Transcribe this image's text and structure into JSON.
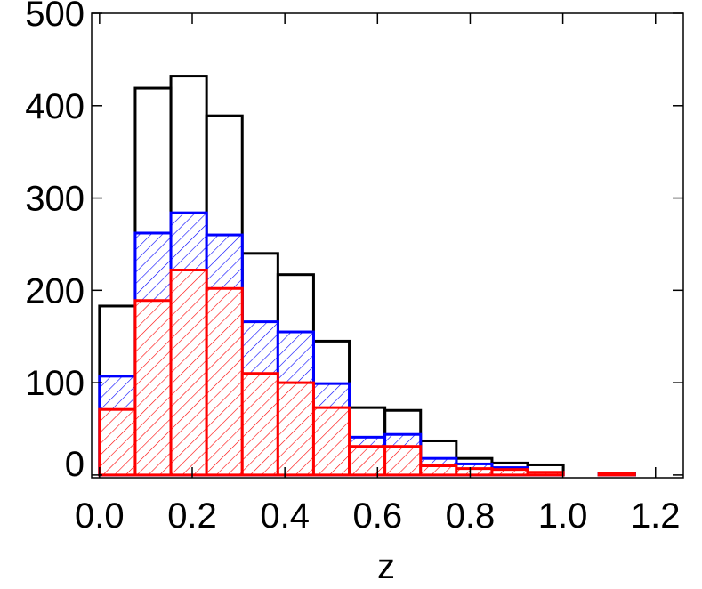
{
  "chart_data": {
    "type": "histogram",
    "xlabel": "z",
    "bins": [
      0,
      0.077,
      0.154,
      0.231,
      0.308,
      0.385,
      0.462,
      0.539,
      0.616,
      0.693,
      0.77,
      0.847,
      0.924,
      1.001,
      1.078,
      1.155
    ],
    "series": [
      {
        "color": "#000000",
        "hatch": false,
        "values": [
          183,
          419,
          432,
          389,
          240,
          217,
          145,
          73,
          70,
          37,
          18,
          13,
          11,
          0,
          2
        ]
      },
      {
        "color": "#0000ff",
        "hatch": true,
        "values": [
          107,
          262,
          284,
          260,
          166,
          155,
          99,
          41,
          44,
          18,
          12,
          8,
          2,
          0,
          2
        ]
      },
      {
        "color": "#ff0000",
        "hatch": true,
        "values": [
          71,
          189,
          222,
          202,
          110,
          100,
          73,
          31,
          31,
          10,
          7,
          6,
          3,
          0,
          2
        ]
      }
    ],
    "xlim": [
      -0.017,
      1.26
    ],
    "ylim": [
      -3,
      500
    ],
    "xticks": [
      {
        "value": 0,
        "label": "0.0"
      },
      {
        "value": 0.2,
        "label": "0.2"
      },
      {
        "value": 0.4,
        "label": "0.4"
      },
      {
        "value": 0.6,
        "label": "0.6"
      },
      {
        "value": 0.8,
        "label": "0.8"
      },
      {
        "value": 1.0,
        "label": "1.0"
      },
      {
        "value": 1.2,
        "label": "1.2"
      }
    ],
    "yticks": [
      0,
      100,
      200,
      300,
      400,
      500
    ]
  }
}
